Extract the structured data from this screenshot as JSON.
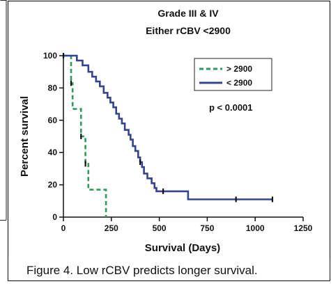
{
  "chart_data": {
    "type": "line",
    "subtype": "kaplan-meier step",
    "title": "Grade III & IV",
    "subtitle": "Either rCBV <2900",
    "xlabel": "Survival (Days)",
    "ylabel": "Percent survival",
    "xlim": [
      0,
      1250
    ],
    "ylim": [
      0,
      100
    ],
    "x_ticks": [
      0,
      250,
      500,
      750,
      1000,
      1250
    ],
    "y_ticks": [
      0,
      20,
      40,
      60,
      80,
      100
    ],
    "legend_position": "top-right",
    "annotation": "p < 0.0001",
    "series": [
      {
        "name": "> 2900",
        "color": "#2e9a5b",
        "style": "dashed",
        "steps": [
          [
            0,
            100
          ],
          [
            40,
            100
          ],
          [
            40,
            83
          ],
          [
            48,
            83
          ],
          [
            48,
            67
          ],
          [
            92,
            67
          ],
          [
            92,
            50
          ],
          [
            115,
            50
          ],
          [
            115,
            33
          ],
          [
            130,
            33
          ],
          [
            130,
            17
          ],
          [
            222,
            17
          ],
          [
            222,
            0
          ]
        ],
        "censor": [
          [
            40,
            83
          ],
          [
            92,
            50
          ],
          [
            115,
            33
          ]
        ]
      },
      {
        "name": "< 2900",
        "color": "#34448e",
        "style": "solid",
        "steps": [
          [
            0,
            100
          ],
          [
            70,
            100
          ],
          [
            70,
            97
          ],
          [
            100,
            97
          ],
          [
            100,
            94
          ],
          [
            130,
            94
          ],
          [
            130,
            90
          ],
          [
            150,
            90
          ],
          [
            150,
            87
          ],
          [
            170,
            87
          ],
          [
            170,
            84
          ],
          [
            190,
            84
          ],
          [
            190,
            81
          ],
          [
            210,
            81
          ],
          [
            210,
            77
          ],
          [
            230,
            77
          ],
          [
            230,
            74
          ],
          [
            245,
            74
          ],
          [
            245,
            71
          ],
          [
            260,
            71
          ],
          [
            260,
            68
          ],
          [
            275,
            68
          ],
          [
            275,
            64
          ],
          [
            290,
            64
          ],
          [
            290,
            61
          ],
          [
            305,
            61
          ],
          [
            305,
            58
          ],
          [
            320,
            58
          ],
          [
            320,
            54
          ],
          [
            340,
            54
          ],
          [
            340,
            51
          ],
          [
            350,
            51
          ],
          [
            350,
            48
          ],
          [
            362,
            48
          ],
          [
            362,
            44
          ],
          [
            375,
            44
          ],
          [
            375,
            41
          ],
          [
            390,
            41
          ],
          [
            390,
            37
          ],
          [
            400,
            37
          ],
          [
            400,
            34
          ],
          [
            410,
            34
          ],
          [
            410,
            31
          ],
          [
            420,
            31
          ],
          [
            420,
            27
          ],
          [
            438,
            27
          ],
          [
            438,
            24
          ],
          [
            460,
            24
          ],
          [
            460,
            21
          ],
          [
            475,
            21
          ],
          [
            475,
            18
          ],
          [
            485,
            18
          ],
          [
            485,
            16
          ],
          [
            650,
            16
          ],
          [
            650,
            11
          ],
          [
            1090,
            11
          ]
        ],
        "censor": [
          [
            0,
            100
          ],
          [
            400,
            34
          ],
          [
            520,
            16
          ],
          [
            900,
            11
          ],
          [
            1090,
            11
          ]
        ]
      }
    ],
    "caption": "Figure 4.  Low rCBV predicts longer survival."
  }
}
